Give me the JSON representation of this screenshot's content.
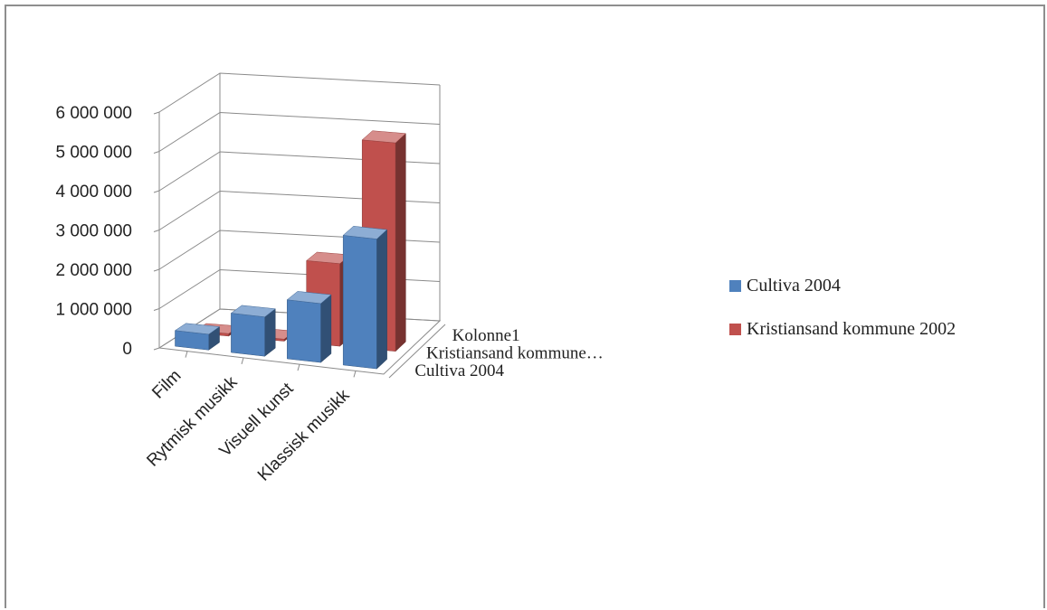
{
  "chart_data": {
    "type": "bar",
    "subtype": "3d-column",
    "title": "",
    "categories": [
      "Film",
      "Rytmisk musikk",
      "Visuell kunst",
      "Klassisk musikk"
    ],
    "series": [
      {
        "name": "Cultiva 2004",
        "values": [
          400000,
          1000000,
          1500000,
          3300000
        ],
        "color": "#4f81bd"
      },
      {
        "name": "Kristiansand kommune 2002",
        "values": [
          60000,
          50000,
          2100000,
          5300000
        ],
        "color": "#c0504d"
      },
      {
        "name": "Kolonne1",
        "values": [
          0,
          0,
          0,
          0
        ],
        "color": "#9bbb59"
      }
    ],
    "depth_labels": [
      "Kolonne1",
      "Kristiansand kommune…",
      "Cultiva 2004"
    ],
    "y_ticks": [
      "0",
      "1 000 000",
      "2 000 000",
      "3 000 000",
      "4 000 000",
      "5 000 000",
      "6 000 000"
    ],
    "ylim": [
      0,
      6000000
    ],
    "grid": true,
    "legend": {
      "position": "right",
      "entries": [
        {
          "label": "Cultiva 2004",
          "color": "#4f81bd"
        },
        {
          "label": "Kristiansand kommune 2002",
          "color": "#c0504d"
        }
      ]
    }
  }
}
